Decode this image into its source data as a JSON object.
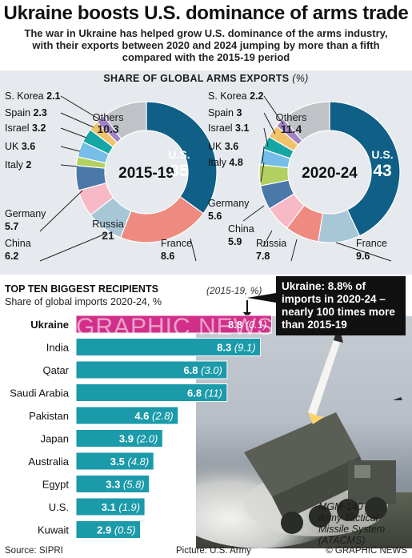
{
  "headline": "Ukraine boosts U.S. dominance of arms trade",
  "standfirst": "The war in Ukraine has helped grow U.S. dominance of the arms industry, with their exports between 2020 and 2024 jumping by more than a fifth compared with the 2015-19 period",
  "pie_section": {
    "title": "SHARE OF GLOBAL ARMS EXPORTS",
    "unit": "(%)"
  },
  "bar_section": {
    "title": "TOP TEN BIGGEST RECIPIENTS",
    "subtitle": "Share of global imports 2020-24, %",
    "note": "(2015-19, %)"
  },
  "callout": "Ukraine: 8.8% of imports in 2020-24 – nearly 100 times more than 2015-19",
  "photo_caption": [
    "MGM-140",
    "Army Tactical",
    "Missile System",
    "(ATACMS)"
  ],
  "footer": {
    "source": "Source: SIPRI",
    "picture": "Picture: U.S. Army",
    "copyright": "© GRAPHIC NEWS"
  },
  "watermark": "GRAPHIC NEWS",
  "colors": {
    "us": "#0f5f86",
    "russia": "#ee8a80",
    "france": "#a7c6d6",
    "china": "#f7b9c5",
    "germany": "#4a78a8",
    "italy": "#b3cf60",
    "uk": "#76bde7",
    "israel": "#16a6a6",
    "spain": "#f0c36b",
    "skorea": "#a084c5",
    "others": "#bfc3c7",
    "bar": "#1b9aaa",
    "bar_highlight": "#d12f8a",
    "panel": "#e6eaee"
  },
  "chart_data": [
    {
      "type": "pie",
      "title": "SHARE OF GLOBAL ARMS EXPORTS",
      "center_label": "2015-19",
      "slices": [
        {
          "name": "U.S.",
          "value": 35
        },
        {
          "name": "Russia",
          "value": 21
        },
        {
          "name": "France",
          "value": 8.6
        },
        {
          "name": "China",
          "value": 6.2
        },
        {
          "name": "Germany",
          "value": 5.7
        },
        {
          "name": "Italy",
          "value": 2.0
        },
        {
          "name": "UK",
          "value": 3.6
        },
        {
          "name": "Israel",
          "value": 3.2
        },
        {
          "name": "Spain",
          "value": 2.3
        },
        {
          "name": "S. Korea",
          "value": 2.1
        },
        {
          "name": "Others",
          "value": 10.3
        }
      ]
    },
    {
      "type": "pie",
      "title": "SHARE OF GLOBAL ARMS EXPORTS",
      "center_label": "2020-24",
      "slices": [
        {
          "name": "U.S.",
          "value": 43
        },
        {
          "name": "France",
          "value": 9.6
        },
        {
          "name": "Russia",
          "value": 7.8
        },
        {
          "name": "China",
          "value": 5.9
        },
        {
          "name": "Germany",
          "value": 5.6
        },
        {
          "name": "Italy",
          "value": 4.8
        },
        {
          "name": "UK",
          "value": 3.6
        },
        {
          "name": "Israel",
          "value": 3.1
        },
        {
          "name": "Spain",
          "value": 3.0
        },
        {
          "name": "S. Korea",
          "value": 2.2
        },
        {
          "name": "Others",
          "value": 11.4
        }
      ]
    },
    {
      "type": "bar",
      "title": "TOP TEN BIGGEST RECIPIENTS",
      "subtitle": "Share of global imports 2020-24, %",
      "categories": [
        "Ukraine",
        "India",
        "Qatar",
        "Saudi Arabia",
        "Pakistan",
        "Japan",
        "Australia",
        "Egypt",
        "U.S.",
        "Kuwait"
      ],
      "series": [
        {
          "name": "2020-24",
          "values": [
            8.8,
            8.3,
            6.8,
            6.8,
            4.6,
            3.9,
            3.5,
            3.3,
            3.1,
            2.9
          ]
        },
        {
          "name": "2015-19",
          "values": [
            0.1,
            9.1,
            3.0,
            11,
            2.8,
            2.0,
            4.8,
            5.8,
            1.9,
            0.5
          ]
        }
      ],
      "value_labels": [
        "8.8",
        "8.3",
        "6.8",
        "6.8",
        "4.6",
        "3.9",
        "3.5",
        "3.3",
        "3.1",
        "2.9"
      ],
      "prev_labels": [
        "(0.1)",
        "(9.1)",
        "(3.0)",
        "(11)",
        "(2.8)",
        "(2.0)",
        "(4.8)",
        "(5.8)",
        "(1.9)",
        "(0.5)"
      ],
      "highlight": "Ukraine"
    }
  ]
}
